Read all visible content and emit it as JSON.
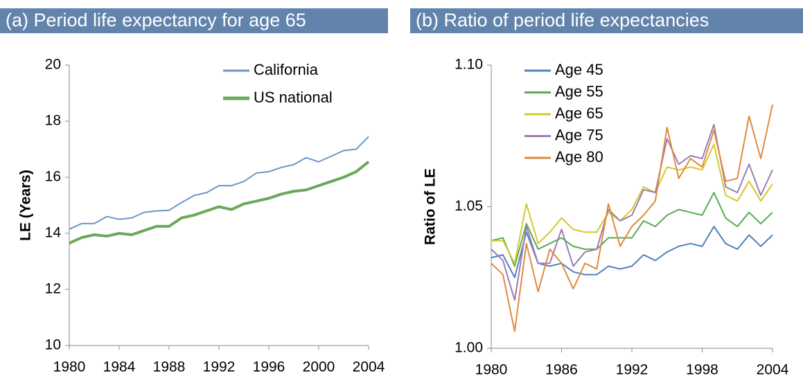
{
  "chart_data": [
    {
      "type": "line",
      "title": "(a) Period life expectancy for age 65",
      "y_label": "LE (Years)",
      "x": [
        1980,
        1981,
        1982,
        1983,
        1984,
        1985,
        1986,
        1987,
        1988,
        1989,
        1990,
        1991,
        1992,
        1993,
        1994,
        1995,
        1996,
        1997,
        1998,
        1999,
        2000,
        2001,
        2002,
        2003,
        2004
      ],
      "series": [
        {
          "name": "California",
          "color": "#6d95c8",
          "values": [
            14.15,
            14.35,
            14.35,
            14.6,
            14.5,
            14.55,
            14.75,
            14.8,
            14.82,
            15.1,
            15.35,
            15.45,
            15.7,
            15.7,
            15.85,
            16.15,
            16.2,
            16.35,
            16.45,
            16.7,
            16.55,
            16.75,
            16.95,
            17.0,
            17.45
          ]
        },
        {
          "name": "US national",
          "color": "#6aa85a",
          "values": [
            13.65,
            13.85,
            13.95,
            13.9,
            14.0,
            13.95,
            14.1,
            14.25,
            14.25,
            14.55,
            14.65,
            14.8,
            14.95,
            14.85,
            15.05,
            15.15,
            15.25,
            15.4,
            15.5,
            15.55,
            15.7,
            15.85,
            16.0,
            16.2,
            16.55
          ]
        }
      ],
      "xlim": [
        1980,
        2004
      ],
      "xticks": [
        1980,
        1984,
        1988,
        1992,
        1996,
        2000,
        2004
      ],
      "ylim": [
        10,
        20
      ],
      "yticks": [
        10,
        12,
        14,
        16,
        18,
        20
      ],
      "legend": "top-right"
    },
    {
      "type": "line",
      "title": "(b) Ratio of period life expectancies",
      "y_label": "Ratio of LE",
      "x": [
        1980,
        1981,
        1982,
        1983,
        1984,
        1985,
        1986,
        1987,
        1988,
        1989,
        1990,
        1991,
        1992,
        1993,
        1994,
        1995,
        1996,
        1997,
        1998,
        1999,
        2000,
        2001,
        2002,
        2003,
        2004
      ],
      "series": [
        {
          "name": "Age 45",
          "color": "#4f81bd",
          "values": [
            1.032,
            1.033,
            1.025,
            1.041,
            1.03,
            1.029,
            1.03,
            1.027,
            1.026,
            1.026,
            1.029,
            1.028,
            1.029,
            1.033,
            1.031,
            1.034,
            1.036,
            1.037,
            1.036,
            1.043,
            1.037,
            1.035,
            1.04,
            1.036,
            1.04
          ]
        },
        {
          "name": "Age 55",
          "color": "#5aaa50",
          "values": [
            1.038,
            1.039,
            1.029,
            1.044,
            1.035,
            1.037,
            1.039,
            1.036,
            1.035,
            1.035,
            1.039,
            1.039,
            1.039,
            1.045,
            1.043,
            1.047,
            1.049,
            1.048,
            1.047,
            1.055,
            1.046,
            1.043,
            1.048,
            1.044,
            1.048
          ]
        },
        {
          "name": "Age 65",
          "color": "#d4c92a",
          "values": [
            1.038,
            1.038,
            1.03,
            1.051,
            1.037,
            1.041,
            1.046,
            1.042,
            1.041,
            1.041,
            1.048,
            1.045,
            1.049,
            1.057,
            1.055,
            1.064,
            1.063,
            1.064,
            1.063,
            1.072,
            1.054,
            1.052,
            1.059,
            1.052,
            1.058
          ]
        },
        {
          "name": "Age 75",
          "color": "#9b7cb6",
          "values": [
            1.035,
            1.031,
            1.017,
            1.043,
            1.03,
            1.03,
            1.042,
            1.029,
            1.034,
            1.035,
            1.049,
            1.045,
            1.047,
            1.056,
            1.055,
            1.074,
            1.065,
            1.068,
            1.067,
            1.079,
            1.057,
            1.055,
            1.065,
            1.054,
            1.063
          ]
        },
        {
          "name": "Age 80",
          "color": "#e08a3c",
          "values": [
            1.03,
            1.026,
            1.006,
            1.037,
            1.02,
            1.035,
            1.03,
            1.021,
            1.03,
            1.028,
            1.051,
            1.036,
            1.043,
            1.047,
            1.052,
            1.078,
            1.06,
            1.067,
            1.064,
            1.077,
            1.059,
            1.06,
            1.082,
            1.067,
            1.086
          ]
        }
      ],
      "xlim": [
        1980,
        2004
      ],
      "xticks": [
        1980,
        1986,
        1992,
        1998,
        2004
      ],
      "ylim": [
        1.0,
        1.1
      ],
      "yticks": [
        {
          "value": 1.0,
          "label": "1.00"
        },
        1.05,
        {
          "value": 1.1,
          "label": "1.10"
        }
      ],
      "legend": "top-left"
    }
  ]
}
